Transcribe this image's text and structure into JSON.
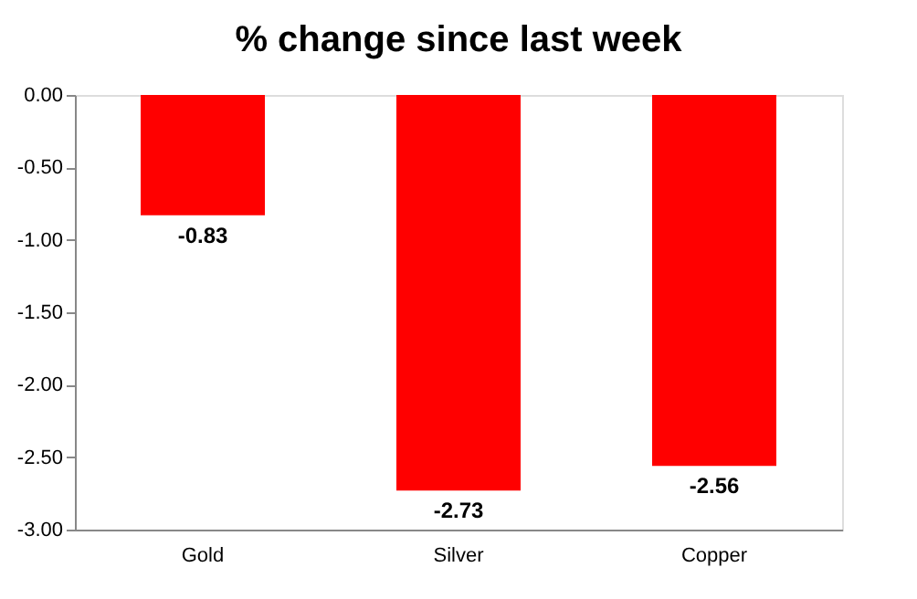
{
  "chart_data": {
    "type": "bar",
    "title": "% change since last week",
    "categories": [
      "Gold",
      "Silver",
      "Copper"
    ],
    "values": [
      -0.83,
      -2.73,
      -2.56
    ],
    "color": "#ff0000",
    "ylim": [
      -3.0,
      0.0
    ],
    "yticks": [
      {
        "value": 0,
        "label": "0.00"
      },
      {
        "value": -0.5,
        "label": "-0.50"
      },
      {
        "value": -1.0,
        "label": "-1.00"
      },
      {
        "value": -1.5,
        "label": "-1.50"
      },
      {
        "value": -2.0,
        "label": "-2.00"
      },
      {
        "value": -2.5,
        "label": "-2.50"
      },
      {
        "value": -3.0,
        "label": "-3.00"
      }
    ],
    "data_labels": true,
    "grid": false
  }
}
